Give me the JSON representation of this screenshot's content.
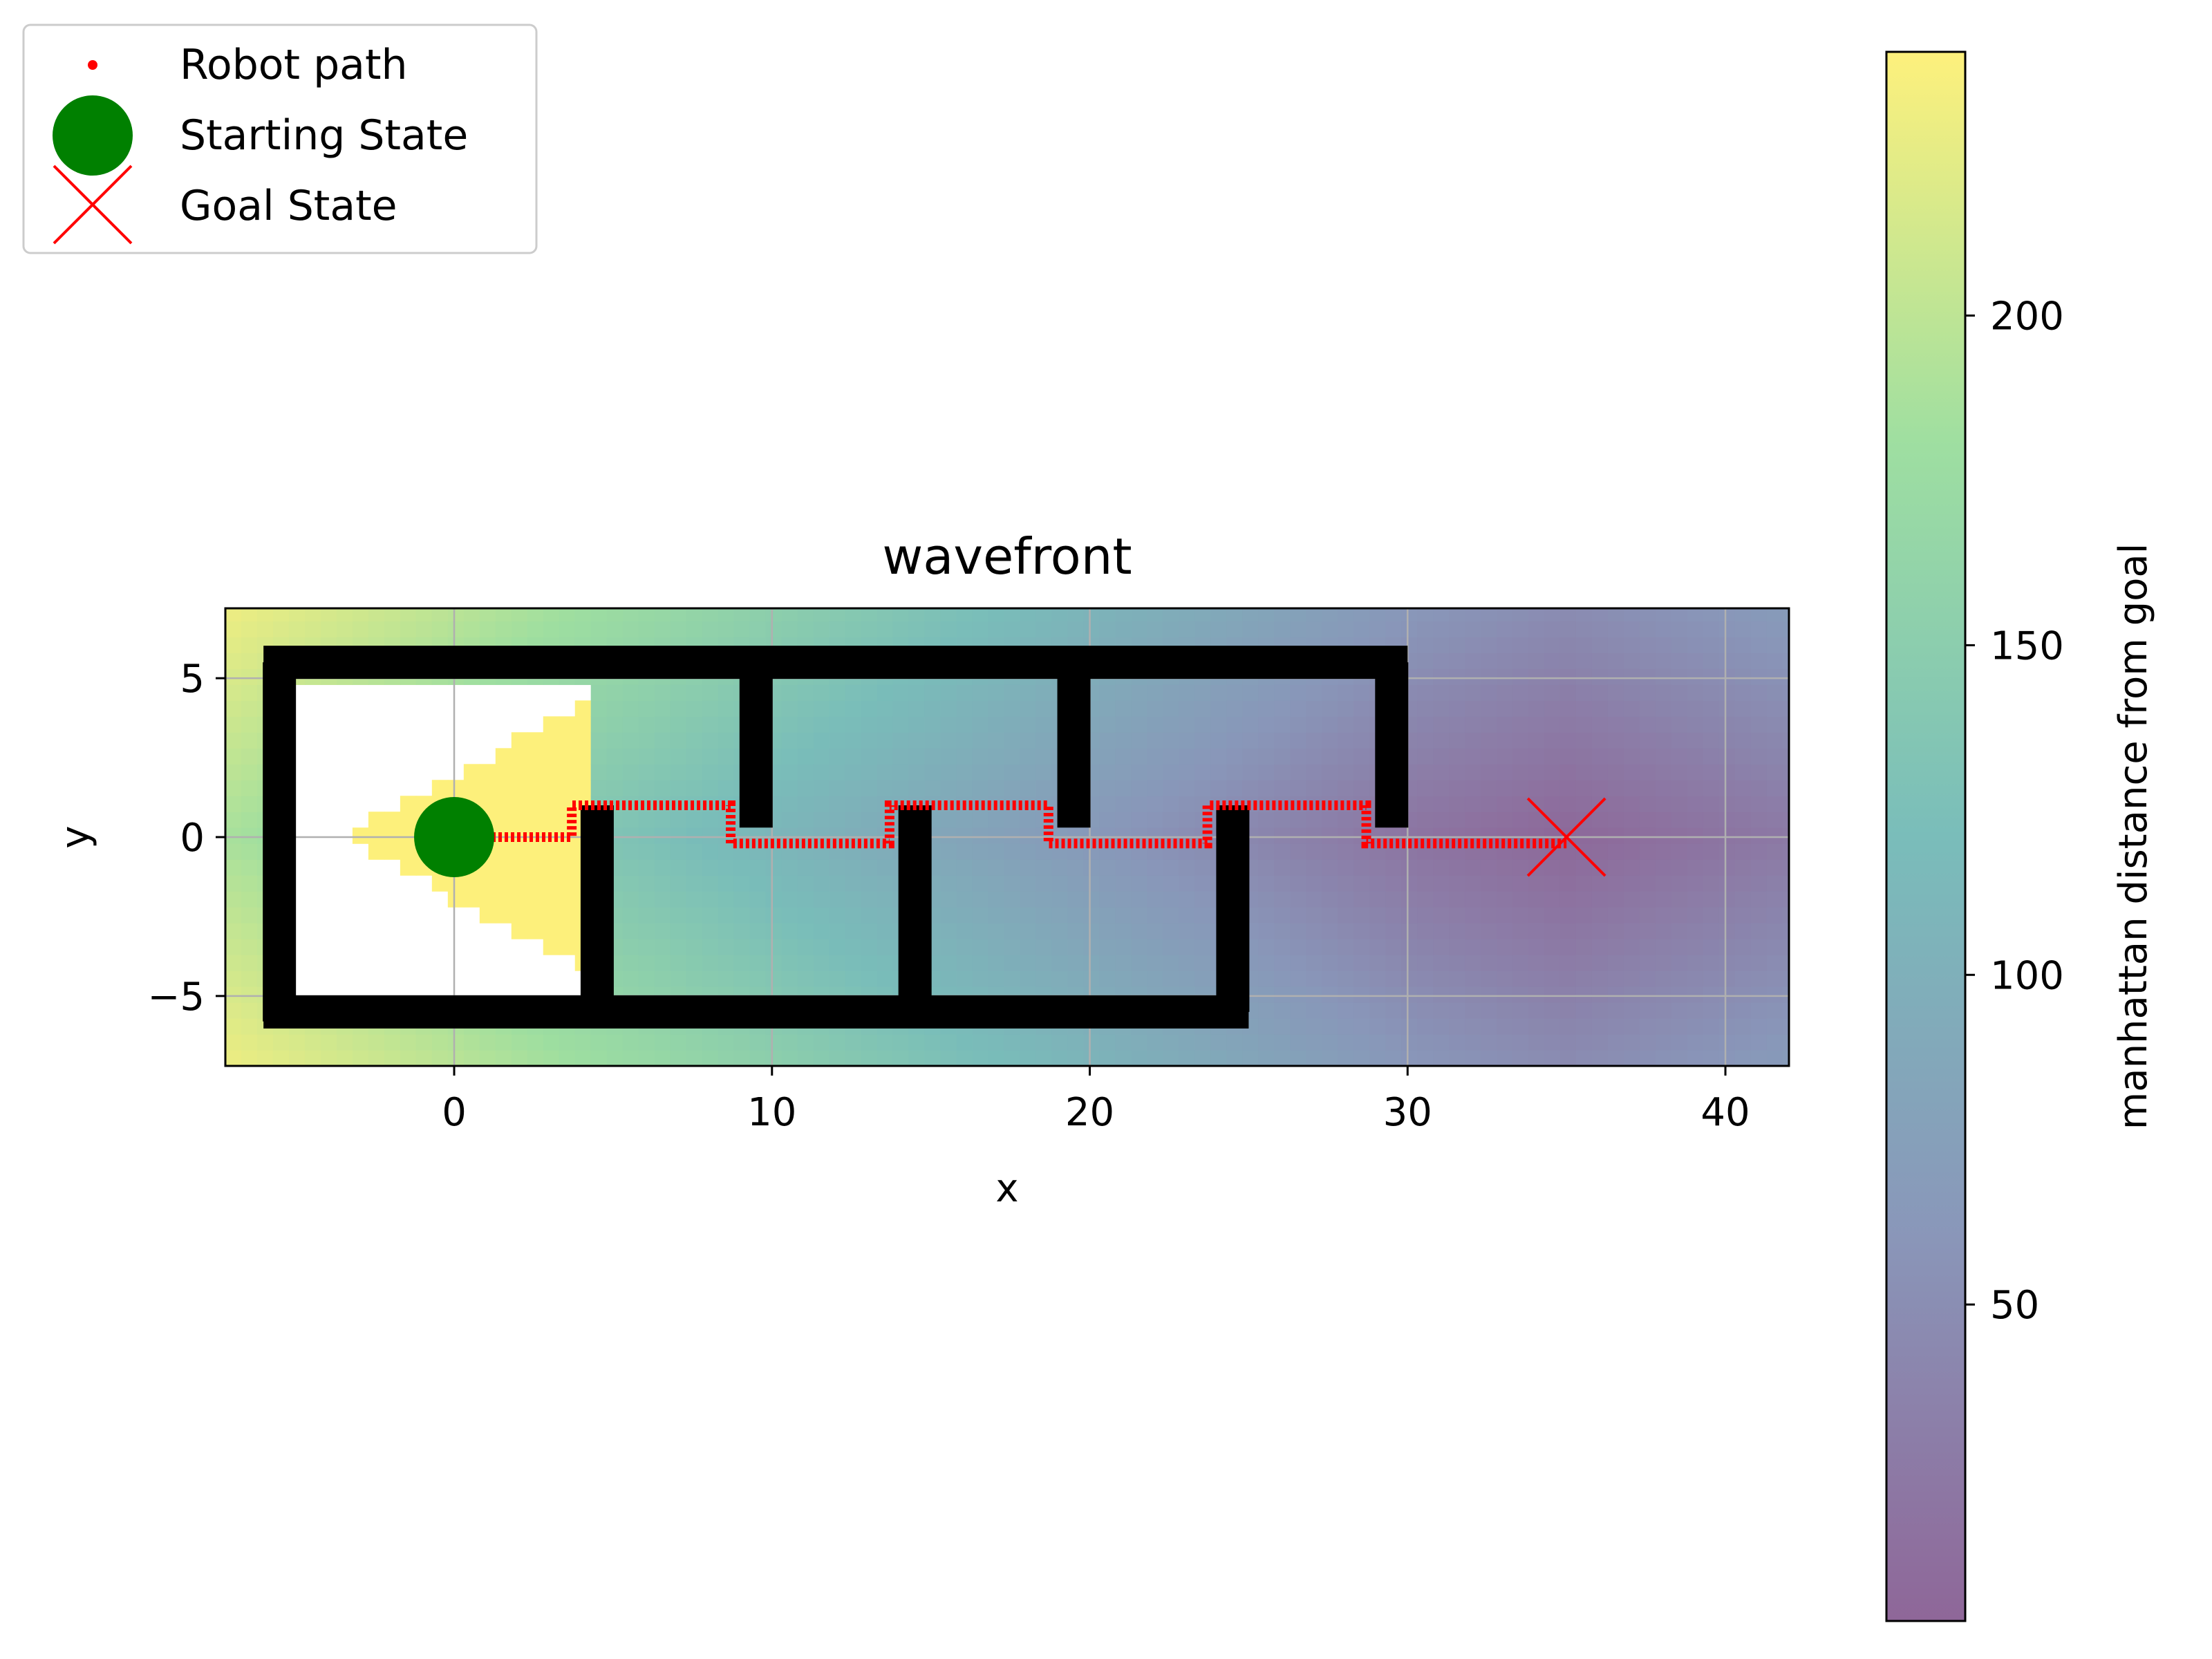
{
  "chart_data": {
    "type": "heatmap",
    "title": "wavefront",
    "xlabel": "x",
    "ylabel": "y",
    "xlim": [
      -7.2,
      42
    ],
    "ylim": [
      -7.2,
      7.2
    ],
    "xticks": [
      0,
      10,
      20,
      30,
      40
    ],
    "yticks": [
      -5,
      0,
      5
    ],
    "xtick_labels": [
      "0",
      "10",
      "20",
      "30",
      "40"
    ],
    "ytick_labels": [
      "−5",
      "0",
      "5"
    ],
    "grid": true,
    "colormap": "viridis",
    "colormap_alpha": 0.6,
    "colorbar": {
      "label": "manhattan distance from goal",
      "range": [
        2,
        240
      ],
      "ticks": [
        50,
        100,
        150,
        200
      ],
      "tick_labels": [
        "50",
        "100",
        "150",
        "200"
      ]
    },
    "goal": {
      "x": 35,
      "y": 0,
      "label": "Goal State",
      "color": "#ff0000",
      "marker": "x"
    },
    "start": {
      "x": 0,
      "y": 0,
      "label": "Starting State",
      "color": "#008000",
      "marker": "circle"
    },
    "path": {
      "label": "Robot path",
      "color": "#ff0000",
      "vertices": [
        [
          1,
          0
        ],
        [
          3.7,
          0
        ],
        [
          3.7,
          1
        ],
        [
          8.7,
          1
        ],
        [
          8.7,
          -0.2
        ],
        [
          13.7,
          -0.2
        ],
        [
          13.7,
          1
        ],
        [
          18.7,
          1
        ],
        [
          18.7,
          -0.2
        ],
        [
          23.7,
          -0.2
        ],
        [
          23.7,
          1
        ],
        [
          28.7,
          1
        ],
        [
          28.7,
          -0.2
        ],
        [
          35,
          -0.2
        ]
      ]
    },
    "walls": [
      {
        "name": "top-wall",
        "x": [
          -6,
          30
        ],
        "y": [
          5.5,
          5.5
        ]
      },
      {
        "name": "bottom-wall",
        "x": [
          -6,
          25
        ],
        "y": [
          -5.5,
          -5.5
        ]
      },
      {
        "name": "left-wall",
        "x": [
          -5.5,
          -5.5
        ],
        "y": [
          -5.8,
          5.5
        ]
      },
      {
        "name": "wall-x5",
        "x": [
          4.5,
          4.5
        ],
        "y": [
          -5.5,
          1
        ]
      },
      {
        "name": "wall-x9",
        "x": [
          9.5,
          9.5
        ],
        "y": [
          0.3,
          5.5
        ]
      },
      {
        "name": "wall-x14",
        "x": [
          14.5,
          14.5
        ],
        "y": [
          -5.5,
          1
        ]
      },
      {
        "name": "wall-x19",
        "x": [
          19.5,
          19.5
        ],
        "y": [
          0.3,
          5.5
        ]
      },
      {
        "name": "wall-x24",
        "x": [
          24.5,
          24.5
        ],
        "y": [
          -5.5,
          1
        ]
      },
      {
        "name": "wall-x29",
        "x": [
          29.5,
          29.5
        ],
        "y": [
          0.3,
          5.5
        ]
      }
    ],
    "legend": {
      "placement": "upper-left",
      "entries": [
        "Robot path",
        "Starting State",
        "Goal State"
      ]
    }
  }
}
